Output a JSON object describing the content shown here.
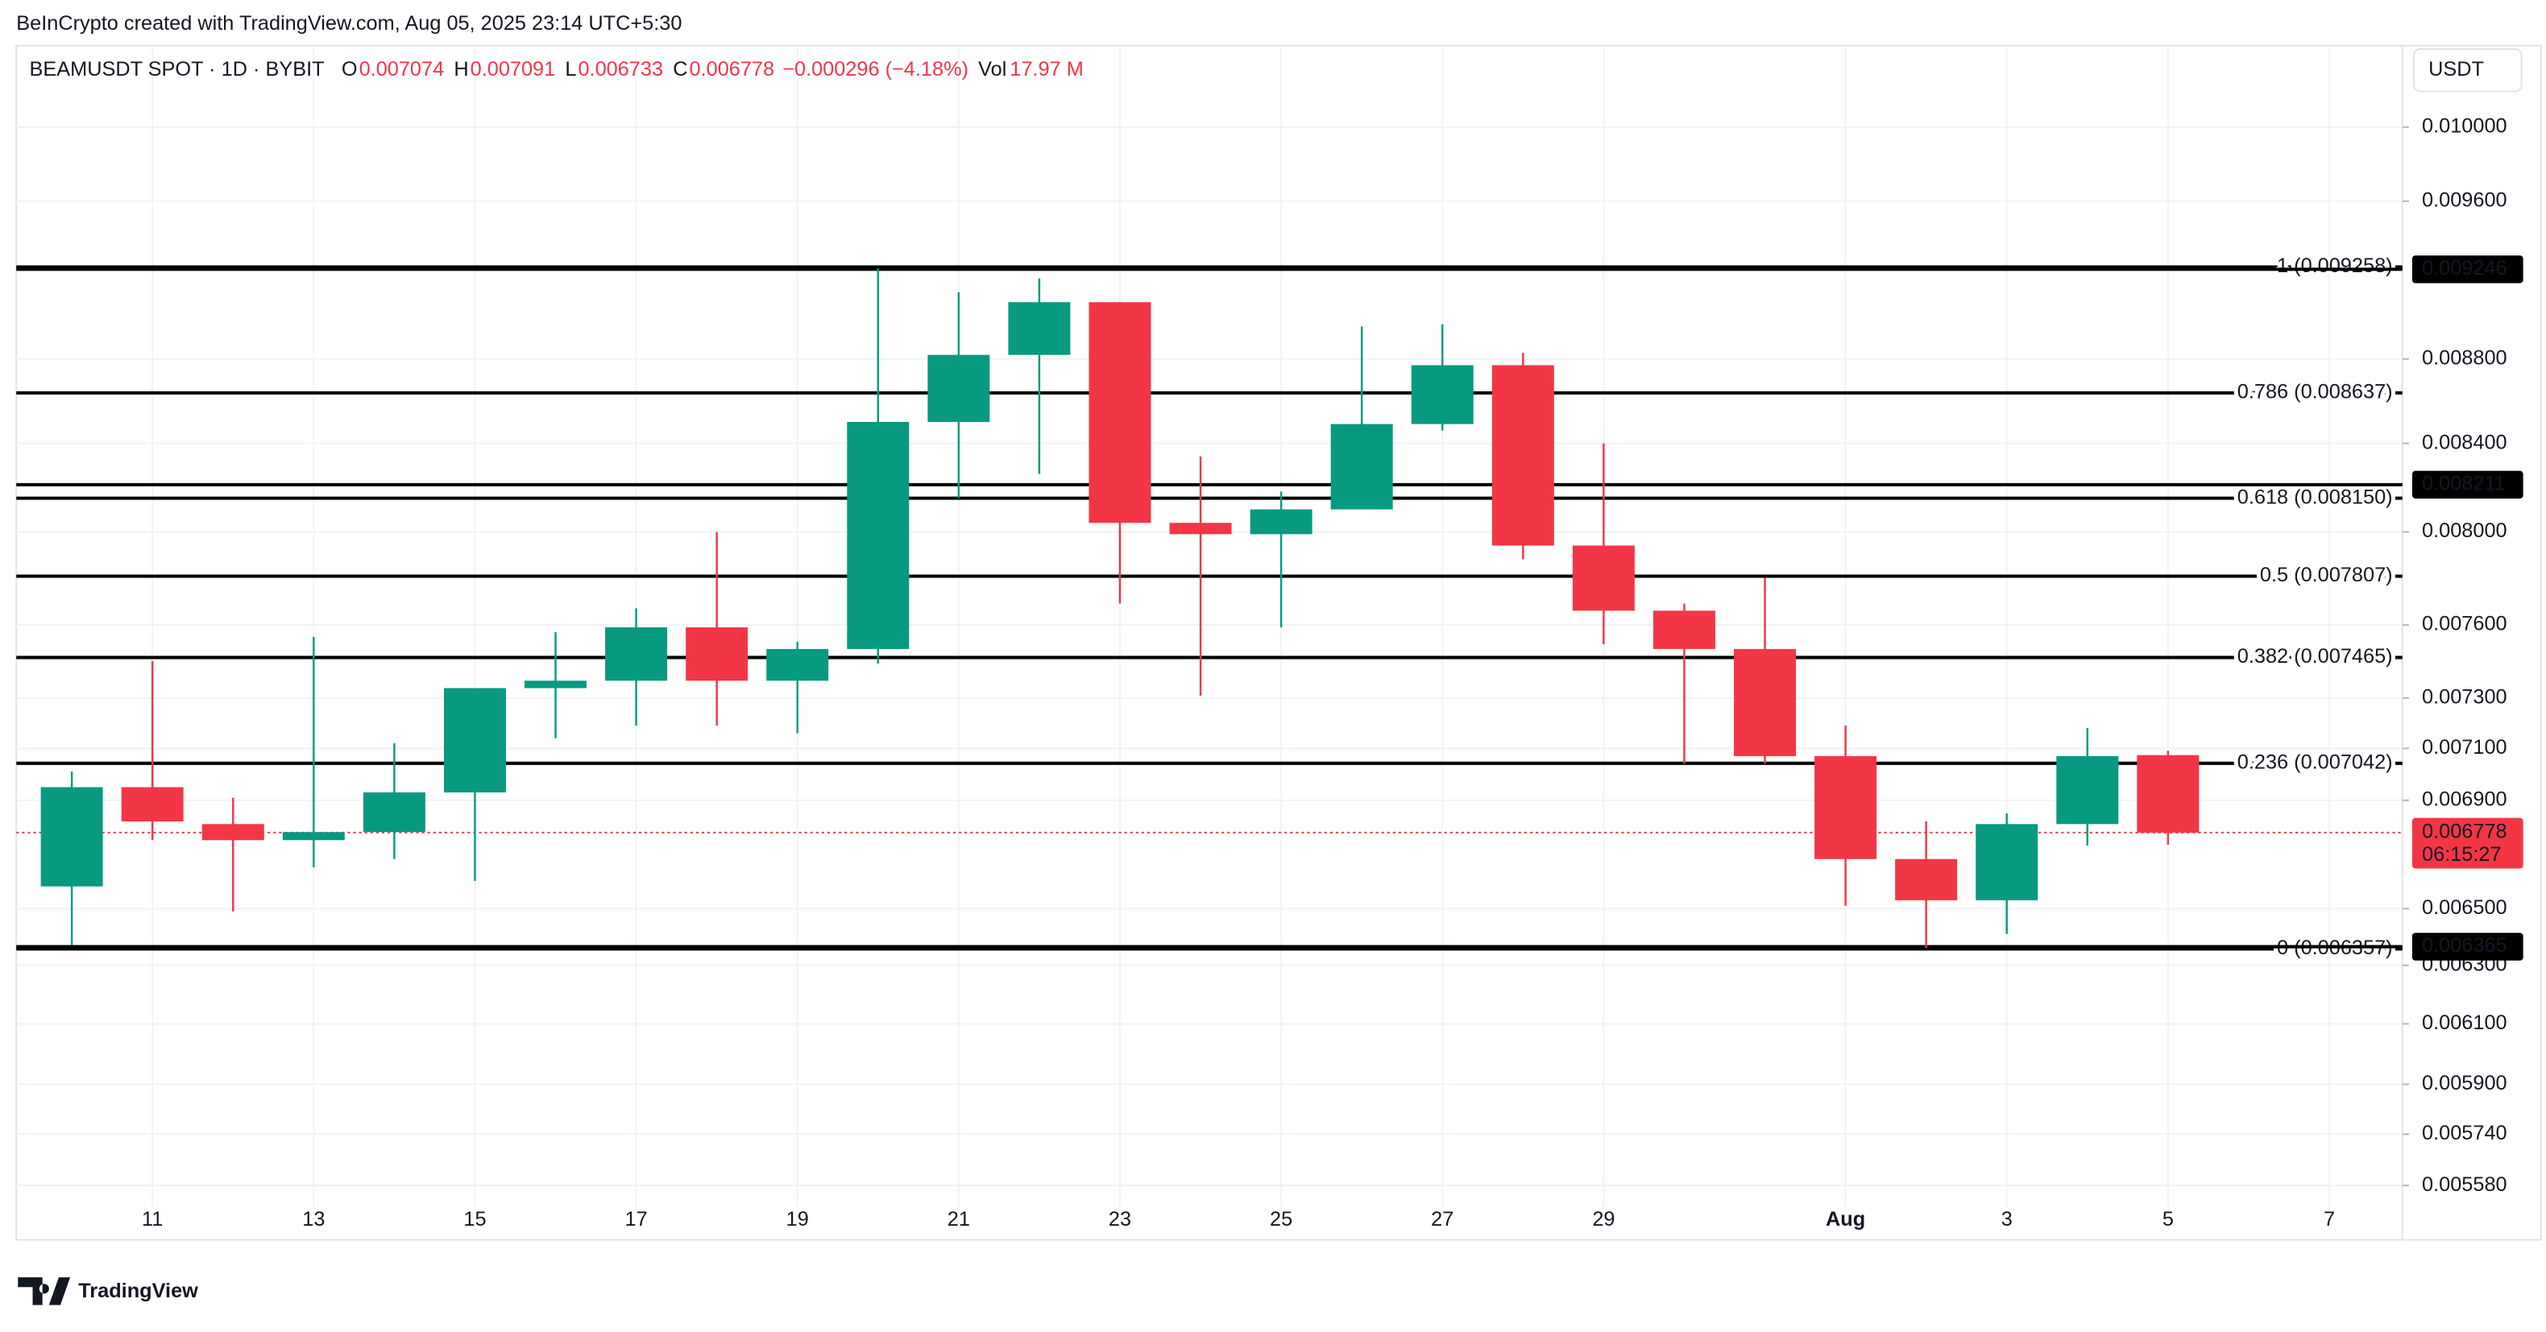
{
  "chart_data": {
    "type": "candlestick",
    "attribution": "BeInCrypto created with TradingView.com, Aug 05, 2025 23:14 UTC+5:30",
    "symbol": "BEAMUSDT SPOT · 1D · BYBIT",
    "legend_keys": [
      "O",
      "H",
      "L",
      "C"
    ],
    "change": "−0.000296 (−4.18%)",
    "volume_key": "Vol",
    "volume": "17.97 M",
    "currency": "USDT",
    "logo": "TradingView",
    "categories": [
      null,
      "11",
      null,
      "13",
      null,
      "15",
      null,
      "17",
      null,
      "19",
      null,
      "21",
      null,
      "23",
      null,
      "25",
      null,
      "27",
      null,
      "29",
      null,
      null,
      "Aug",
      null,
      "3",
      null,
      "5",
      null,
      "7"
    ],
    "open": [
      0.00658,
      0.00695,
      0.00681,
      0.00675,
      0.00678,
      0.00693,
      0.00734,
      0.00737,
      0.00759,
      0.00737,
      0.0075,
      0.0085,
      0.00882,
      0.00908,
      0.00804,
      0.00799,
      0.0081,
      0.00849,
      0.00877,
      0.00794,
      0.00766,
      0.0075,
      0.00707,
      0.00668,
      0.00653,
      0.00681,
      0.007074,
      null,
      null
    ],
    "high": [
      0.00701,
      0.00745,
      0.00691,
      0.00755,
      0.00712,
      0.00734,
      0.00757,
      0.00767,
      0.008,
      0.00753,
      0.00925,
      0.00913,
      0.0092,
      0.00908,
      0.00834,
      0.00818,
      0.00896,
      0.00897,
      0.00883,
      0.0084,
      0.00769,
      0.0078,
      0.00719,
      0.00682,
      0.00685,
      0.00718,
      0.007091,
      null,
      null
    ],
    "low": [
      0.00637,
      0.00675,
      0.00649,
      0.00665,
      0.00668,
      0.0066,
      0.00714,
      0.00719,
      0.00719,
      0.00716,
      0.00744,
      0.00815,
      0.00826,
      0.00769,
      0.00731,
      0.00759,
      0.0081,
      0.00846,
      0.00788,
      0.00752,
      0.00704,
      0.00704,
      0.00651,
      0.00636,
      0.00641,
      0.00673,
      0.006733,
      null,
      null
    ],
    "close": [
      0.00695,
      0.00682,
      0.00675,
      0.00678,
      0.00693,
      0.00734,
      0.00737,
      0.00759,
      0.00737,
      0.0075,
      0.0085,
      0.00882,
      0.00908,
      0.00804,
      0.00799,
      0.0081,
      0.00849,
      0.00877,
      0.00794,
      0.00766,
      0.0075,
      0.00707,
      0.00668,
      0.00653,
      0.00681,
      0.00707,
      0.006778,
      null,
      null
    ],
    "colors": {
      "up": "#089981",
      "down": "#f23645"
    },
    "log_scale": true,
    "grid": true,
    "ylim": [
      0.00554,
      0.01044
    ],
    "yticks": [
      {
        "value": 0.01,
        "label": "0.010000"
      },
      {
        "value": 0.0096,
        "label": "0.009600"
      },
      {
        "value": 0.0088,
        "label": "0.008800"
      },
      {
        "value": 0.0084,
        "label": "0.008400"
      },
      {
        "value": 0.008,
        "label": "0.008000"
      },
      {
        "value": 0.0076,
        "label": "0.007600"
      },
      {
        "value": 0.0073,
        "label": "0.007300"
      },
      {
        "value": 0.0071,
        "label": "0.007100"
      },
      {
        "value": 0.0069,
        "label": "0.006900"
      },
      {
        "value": 0.0065,
        "label": "0.006500"
      },
      {
        "value": 0.0063,
        "label": "0.006300"
      },
      {
        "value": 0.0061,
        "label": "0.006100"
      },
      {
        "value": 0.0059,
        "label": "0.005900"
      },
      {
        "value": 0.00574,
        "label": "0.005740"
      },
      {
        "value": 0.00558,
        "label": "0.005580"
      }
    ],
    "fib_levels": [
      {
        "label": "1 (0.009258)",
        "value": 0.009258
      },
      {
        "label": "0.786 (0.008637)",
        "value": 0.008637
      },
      {
        "label": "0.618 (0.008150)",
        "value": 0.00815
      },
      {
        "label": "0.5 (0.007807)",
        "value": 0.007807
      },
      {
        "label": "0.382 (0.007465)",
        "value": 0.007465
      },
      {
        "label": "0.236 (0.007042)",
        "value": 0.007042
      },
      {
        "label": "0 (0.006357)",
        "value": 0.006357
      }
    ],
    "price_tags": [
      0.009246,
      0.008211,
      0.006365
    ],
    "countdown": "06:15:27"
  }
}
